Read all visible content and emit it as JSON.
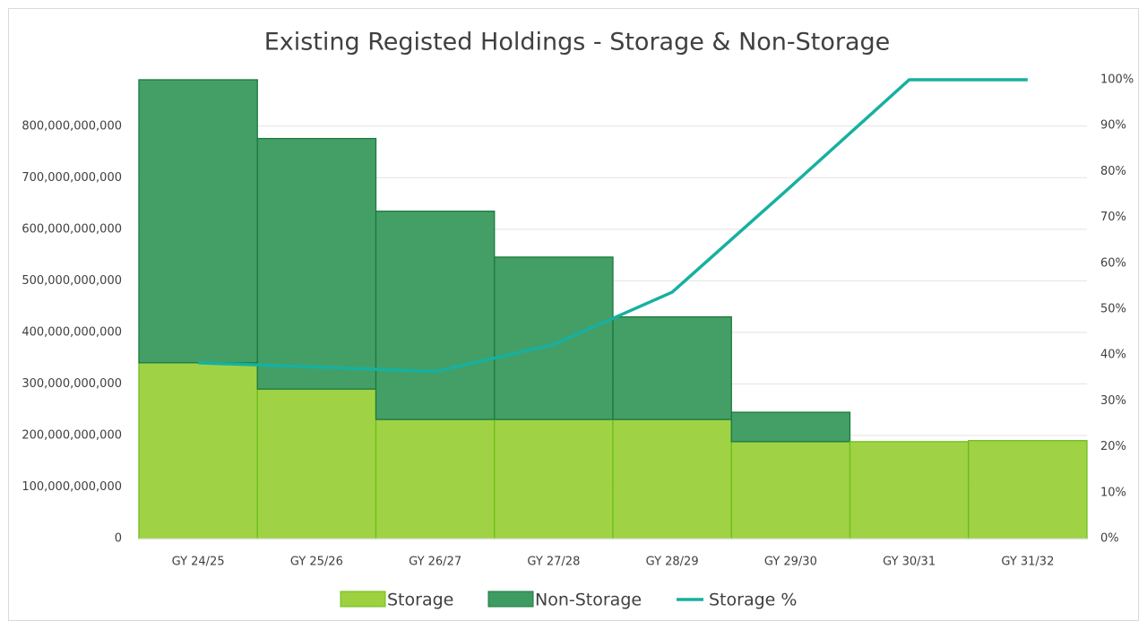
{
  "chart_data": {
    "type": "stacked-bar-line",
    "title": "Existing Registed Holdings - Storage & Non-Storage",
    "categories": [
      "GY 24/25",
      "GY 25/26",
      "GY 26/27",
      "GY 27/28",
      "GY 28/29",
      "GY 29/30",
      "GY 30/31",
      "GY 31/32"
    ],
    "series": [
      {
        "name": "Storage",
        "color": "#9dd13f",
        "values": [
          341000000000,
          290000000000,
          231000000000,
          231000000000,
          231000000000,
          188000000000,
          188000000000,
          190000000000
        ]
      },
      {
        "name": "Non-Storage",
        "color": "#3e9c62",
        "values": [
          549000000000,
          486000000000,
          404000000000,
          315000000000,
          199000000000,
          57000000000,
          0,
          0
        ]
      },
      {
        "name": "Storage %",
        "color": "#17b0a0",
        "axis": "y2",
        "values": [
          38.3,
          37.4,
          36.4,
          42.3,
          53.7,
          76.7,
          100,
          100
        ]
      }
    ],
    "ylim": [
      0,
      890000000000
    ],
    "yticks": [
      0,
      {
        "value": 100000000000,
        "label": "100,000,000,000"
      },
      {
        "value": 200000000000,
        "label": "200,000,000,000"
      },
      {
        "value": 300000000000,
        "label": "300,000,000,000"
      },
      {
        "value": 400000000000,
        "label": "400,000,000,000"
      },
      {
        "value": 500000000000,
        "label": "500,000,000,000"
      },
      {
        "value": 600000000000,
        "label": "600,000,000,000"
      },
      {
        "value": 700000000000,
        "label": "700,000,000,000"
      },
      {
        "value": 800000000000,
        "label": "800,000,000,000"
      }
    ],
    "y2lim": [
      0,
      100
    ],
    "y2ticks": [
      {
        "value": 0,
        "label": "0%"
      },
      {
        "value": 10,
        "label": "10%"
      },
      {
        "value": 20,
        "label": "20%"
      },
      {
        "value": 30,
        "label": "30%"
      },
      {
        "value": 40,
        "label": "40%"
      },
      {
        "value": 50,
        "label": "50%"
      },
      {
        "value": 60,
        "label": "60%"
      },
      {
        "value": 70,
        "label": "70%"
      },
      {
        "value": 80,
        "label": "80%"
      },
      {
        "value": 90,
        "label": "90%"
      },
      {
        "value": 100,
        "label": "100%"
      }
    ],
    "grid": true,
    "legend": "bottom"
  }
}
